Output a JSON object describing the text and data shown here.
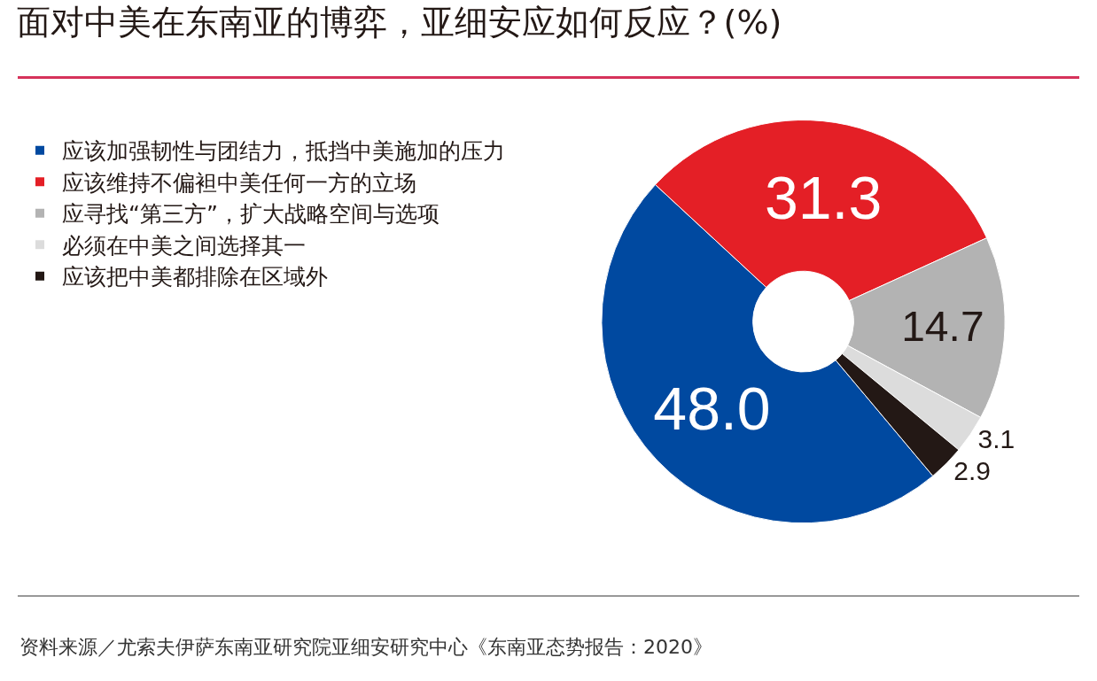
{
  "chart_data": {
    "type": "donut",
    "title": "面对中美在东南亚的博弈，亚细安应如何反应？(%)",
    "categories": [
      "应该加强韧性与团结力，抵挡中美施加的压力",
      "应该维持不偏袒中美任何一方的立场",
      "应寻找“第三方”，扩大战略空间与选项",
      "必须在中美之间选择其一",
      "应该把中美都排除在区域外"
    ],
    "values": [
      48.0,
      31.3,
      14.7,
      3.1,
      2.9
    ],
    "value_labels": [
      "48.0",
      "31.3",
      "14.7",
      "3.1",
      "2.9"
    ],
    "colors": [
      "#0049a0",
      "#e41f26",
      "#b3b3b3",
      "#dcdcdc",
      "#231815"
    ],
    "legend": "left",
    "annotations": [
      "资料来源／尤索夫伊萨东南亚研究院亚细安研究中心《东南亚态势报告：2020》"
    ]
  }
}
